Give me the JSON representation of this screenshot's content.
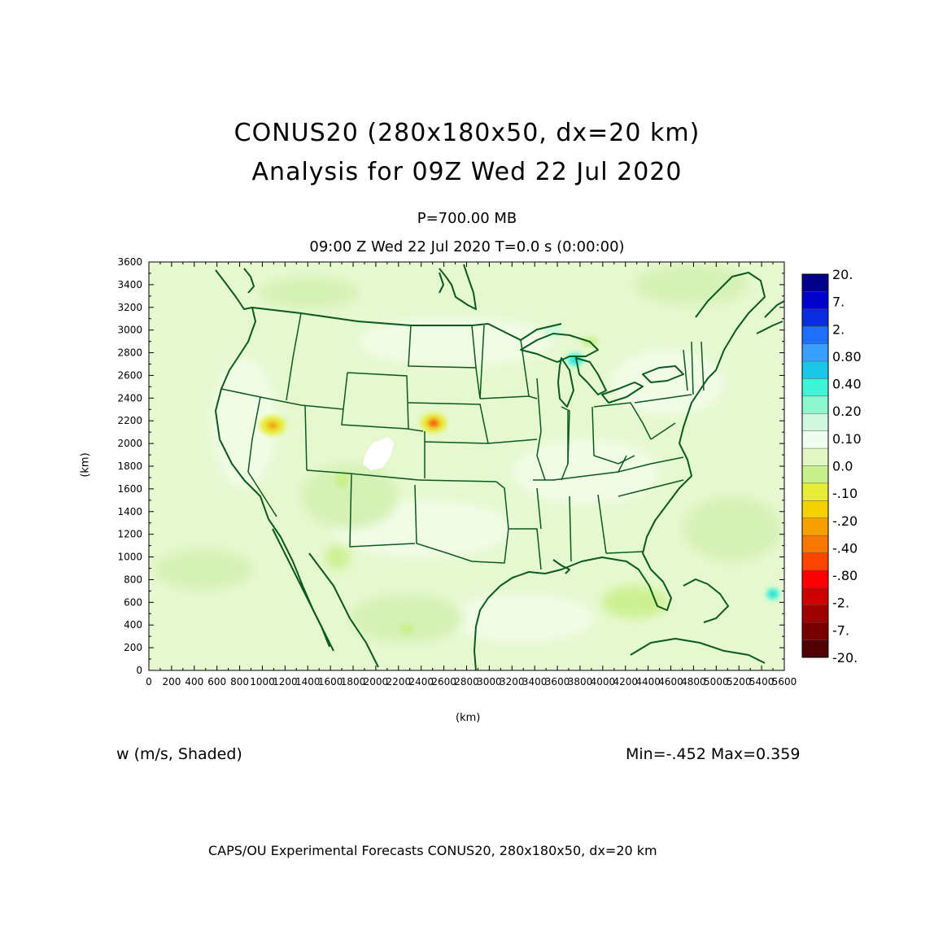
{
  "title_line1": "CONUS20 (280x180x50, dx=20 km)",
  "title_line2": "Analysis for 09Z Wed 22 Jul 2020",
  "level": "P=700.00 MB",
  "valid_time": "09:00 Z Wed 22 Jul 2020    T=0.0 s (0:00:00)",
  "field_label": "w (m/s, Shaded)",
  "minmax": "Min=-.452 Max=0.359",
  "footer": "CAPS/OU Experimental Forecasts  CONUS20, 280x180x50, dx=20 km",
  "axes": {
    "x_label": "(km)",
    "y_label": "(km)",
    "x_range": [
      0,
      5600
    ],
    "y_range": [
      0,
      3600
    ],
    "x_ticks": [
      "0",
      "200",
      "400",
      "600",
      "800",
      "1000",
      "1200",
      "1400",
      "1600",
      "1800",
      "2000",
      "2200",
      "2400",
      "2600",
      "2800",
      "3000",
      "3200",
      "3400",
      "3600",
      "3800",
      "4000",
      "4200",
      "4400",
      "4600",
      "4800",
      "5000",
      "5200",
      "5400",
      "5600"
    ],
    "y_ticks": [
      "0",
      "200",
      "400",
      "600",
      "800",
      "1000",
      "1200",
      "1400",
      "1600",
      "1800",
      "2000",
      "2200",
      "2400",
      "2600",
      "2800",
      "3000",
      "3200",
      "3400",
      "3600"
    ]
  },
  "colorbar": {
    "labels": [
      "20.",
      "7.",
      "2.",
      "0.80",
      "0.40",
      "0.20",
      "0.10",
      "0.0",
      "-.10",
      "-.20",
      "-.40",
      "-.80",
      "-2.",
      "-7.",
      "-20."
    ],
    "colors": [
      "#00008b",
      "#0000cd",
      "#0a2be0",
      "#1f6fff",
      "#3aa0ff",
      "#19c8e8",
      "#3ff5d6",
      "#8ff7d0",
      "#cff8df",
      "#effdf0",
      "#e2f7c6",
      "#c9f08a",
      "#e6ee3a",
      "#f7d000",
      "#f7a000",
      "#f77800",
      "#ff4400",
      "#ff0000",
      "#cc0000",
      "#a00000",
      "#780000",
      "#500000"
    ]
  },
  "map_colors": {
    "background": "#e6f8cf",
    "light": "#f3fde9",
    "medium": "#d4f1b3",
    "boundary": "#0a5a1e"
  }
}
